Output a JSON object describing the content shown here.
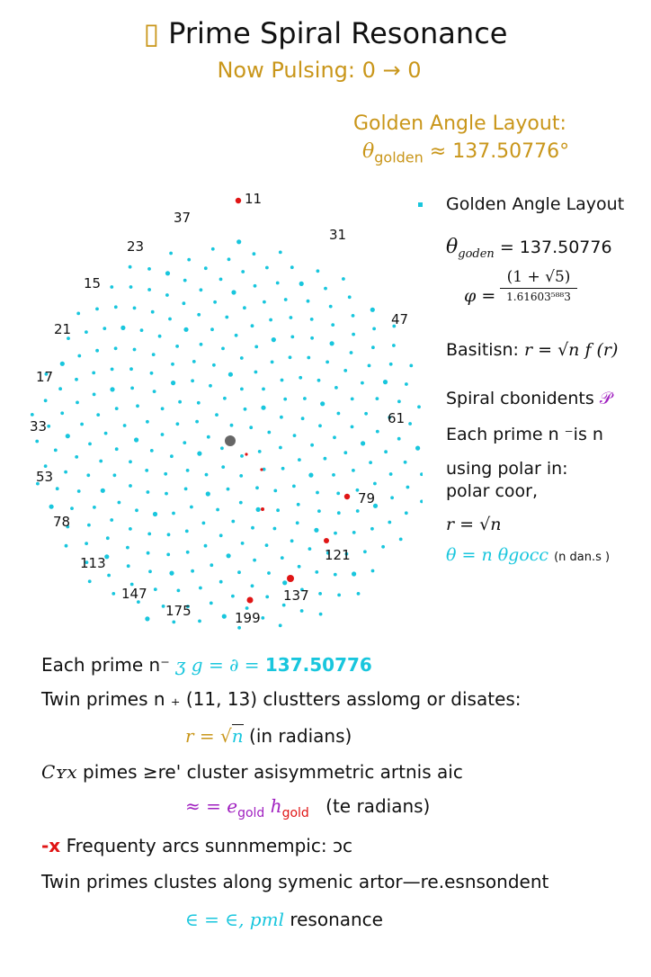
{
  "header": {
    "glyph": "▯",
    "title": "Prime Spiral Resonance",
    "pulse": "Now Pulsing: 0  →  0"
  },
  "golden_box": {
    "heading": "Golden Angle Layout:",
    "theta": "θ",
    "theta_sub": "golden",
    "value": " ≈ 137.50776°"
  },
  "sidebar": {
    "legend_title": "Golden Angle Layout",
    "theta": "θ",
    "theta_sub": "goden",
    "theta_value": "= 137.50776",
    "phi": "φ =",
    "phi_num": "(1 + √5)",
    "phi_den": "1.61603⁵⁸⁸3",
    "basis_label": "Basitisn:",
    "basis_formula": "r = √n  f (r)",
    "spiral_label": "Spiral cbonidents",
    "spiral_glyph": "𝒫",
    "line1": "Each prime n ⁻is n",
    "line2": "using polar in:",
    "line3": "polar coor,",
    "r_formula": "r = √n",
    "theta_formula": "θ = n θgocc",
    "theta_formula_suffix": "(n dan.s )"
  },
  "bottom": {
    "row1_prefix": "Each prime n⁻",
    "row1_mid": "ʒ  g = ∂ =",
    "row1_value": "137.50776",
    "row2": "Twin primes n ₊ (11, 13) clustters asslomɡ or disates:",
    "row3_r": "r = √",
    "row3_n": "n",
    "row3_suffix": "(in    radians)",
    "row4_prefix": "Cʏx",
    "row4_text": "pimes ≥re' cluster asisymmetric artnis aic",
    "row5_left": "≈ = e",
    "row5_sub1": "gold",
    "row5_mid": "ℎ",
    "row5_sub2": "gold",
    "row5_suffix": "(te radians)",
    "row6_mark": "-x",
    "row6_text": "Frequenty arcs sunnmempic: ɔc",
    "row7": "Twin primes clustes along symenic artor—re.esnsondent",
    "row8_left": "∈ = ∈, pml",
    "row8_suffix": "resonance"
  },
  "spiral_labels": [
    {
      "label": "11"
    },
    {
      "label": "37"
    },
    {
      "label": "31"
    },
    {
      "label": "23"
    },
    {
      "label": "15"
    },
    {
      "label": "47"
    },
    {
      "label": "21"
    },
    {
      "label": "17"
    },
    {
      "label": "61"
    },
    {
      "label": "33"
    },
    {
      "label": "53"
    },
    {
      "label": "79"
    },
    {
      "label": "78"
    },
    {
      "label": "121"
    },
    {
      "label": "113"
    },
    {
      "label": "137"
    },
    {
      "label": "147"
    },
    {
      "label": "175"
    },
    {
      "label": "199"
    }
  ],
  "colors": {
    "gold": "#c9961a",
    "cyan": "#18c6dd",
    "red": "#e01515",
    "purple": "#a020c0",
    "center": "#666666"
  }
}
